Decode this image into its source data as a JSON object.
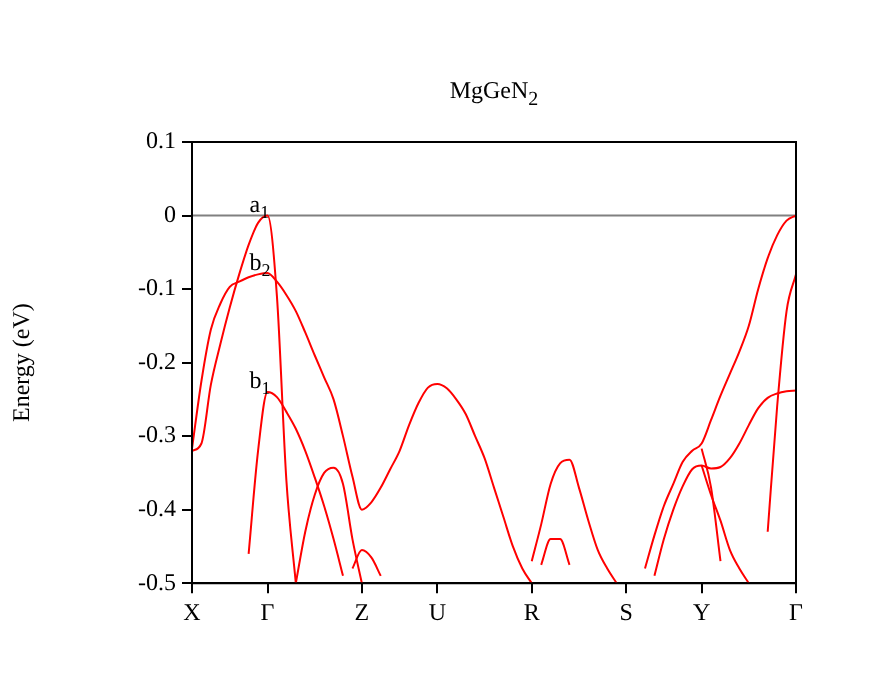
{
  "chart_data": {
    "type": "line",
    "title": "MgGeN$_{2}$",
    "ylabel": "Energy (eV)",
    "categories": [
      "X",
      null,
      null,
      null,
      null,
      null,
      null,
      null,
      "Γ",
      null,
      null,
      null,
      null,
      null,
      null,
      null,
      null,
      null,
      "Z",
      null,
      null,
      null,
      null,
      null,
      null,
      null,
      "U",
      null,
      null,
      null,
      null,
      null,
      null,
      null,
      null,
      null,
      "R",
      null,
      null,
      null,
      null,
      null,
      null,
      null,
      null,
      null,
      "S",
      null,
      null,
      null,
      null,
      null,
      null,
      null,
      "Y",
      null,
      null,
      null,
      null,
      null,
      null,
      null,
      null,
      null,
      "Γ"
    ],
    "ylim": [
      -0.5,
      0.1
    ],
    "yticks": [
      -0.5,
      -0.4,
      -0.3,
      -0.2,
      -0.1,
      0,
      0.1
    ],
    "grid": false,
    "legend": false,
    "marker": "none",
    "line_style": "solid",
    "ref_lines": [
      {
        "axis": "y",
        "value": 0,
        "color": "#808080"
      }
    ],
    "annotations": [
      {
        "text": "a$_{1}$",
        "x": "Γ",
        "y": 0
      },
      {
        "text": "b$_{2}$",
        "x": "Γ",
        "y": -0.08
      },
      {
        "text": "b$_{1}$",
        "x": "Γ",
        "y": -0.24
      }
    ],
    "series": [
      {
        "color": "#ff0000",
        "values": [
          -0.32,
          -0.31,
          -0.23,
          -0.175,
          -0.125,
          -0.08,
          -0.04,
          -0.01,
          0,
          -0.11,
          -0.36,
          -0.5,
          null,
          null,
          null,
          null,
          null,
          null,
          null,
          null,
          null,
          null,
          null,
          null,
          null,
          null,
          null,
          null,
          null,
          null,
          null,
          null,
          null,
          null,
          null,
          null,
          null,
          null,
          null,
          null,
          null,
          null,
          null,
          null,
          null,
          null,
          null,
          null,
          null,
          null,
          null,
          null,
          null,
          null,
          null,
          null,
          null,
          null,
          null,
          null,
          null,
          null,
          null,
          null,
          null
        ]
      },
      {
        "color": "#ff0000",
        "values": [
          -0.317,
          -0.225,
          -0.155,
          -0.12,
          -0.097,
          -0.09,
          -0.084,
          -0.08,
          -0.078,
          -0.09,
          -0.108,
          -0.13,
          -0.159,
          -0.19,
          -0.22,
          -0.25,
          -0.3,
          -0.355,
          -0.4,
          -0.39,
          -0.37,
          -0.345,
          -0.32,
          -0.285,
          -0.255,
          -0.234,
          -0.229,
          -0.235,
          -0.25,
          -0.27,
          -0.3,
          -0.33,
          -0.37,
          -0.41,
          -0.45,
          -0.48,
          -0.5,
          null,
          null,
          null,
          null,
          null,
          null,
          null,
          null,
          null,
          null,
          null,
          null,
          null,
          null,
          null,
          null,
          null,
          null,
          null,
          null,
          null,
          null,
          null,
          null,
          null,
          null,
          null,
          null
        ]
      },
      {
        "color": "#ff0000",
        "values": [
          null,
          null,
          null,
          null,
          null,
          null,
          -0.46,
          -0.32,
          -0.24,
          -0.247,
          -0.267,
          -0.29,
          -0.32,
          -0.356,
          -0.395,
          -0.44,
          -0.49,
          null,
          null,
          null,
          null,
          null,
          null,
          null,
          null,
          null,
          null,
          null,
          null,
          null,
          null,
          null,
          null,
          null,
          null,
          null,
          null,
          null,
          null,
          null,
          null,
          null,
          null,
          null,
          null,
          null,
          null,
          null,
          null,
          null,
          null,
          null,
          null,
          null,
          null,
          null,
          null,
          null,
          null,
          null,
          null,
          null,
          null,
          null,
          null
        ]
      },
      {
        "color": "#ff0000",
        "values": [
          null,
          null,
          null,
          null,
          null,
          null,
          null,
          null,
          null,
          null,
          null,
          -0.5,
          -0.43,
          -0.38,
          -0.35,
          -0.343,
          -0.365,
          -0.44,
          -0.5,
          null,
          null,
          null,
          null,
          null,
          null,
          null,
          null,
          null,
          null,
          null,
          null,
          null,
          null,
          null,
          null,
          null,
          null,
          null,
          null,
          null,
          null,
          null,
          null,
          null,
          null,
          null,
          null,
          null,
          null,
          null,
          null,
          null,
          null,
          null,
          null,
          null,
          null,
          null,
          null,
          null,
          null,
          null,
          null,
          null,
          null
        ]
      },
      {
        "color": "#ff0000",
        "values": [
          null,
          null,
          null,
          null,
          null,
          null,
          null,
          null,
          null,
          null,
          null,
          null,
          null,
          null,
          null,
          null,
          null,
          -0.48,
          -0.455,
          -0.465,
          -0.49,
          null,
          null,
          null,
          null,
          null,
          null,
          null,
          null,
          null,
          null,
          null,
          null,
          null,
          null,
          null,
          null,
          null,
          null,
          null,
          null,
          null,
          null,
          null,
          null,
          null,
          null,
          null,
          null,
          null,
          null,
          null,
          null,
          null,
          null,
          null,
          null,
          null,
          null,
          null,
          null,
          null,
          null,
          null,
          null
        ]
      },
      {
        "color": "#ff0000",
        "values": [
          null,
          null,
          null,
          null,
          null,
          null,
          null,
          null,
          null,
          null,
          null,
          null,
          null,
          null,
          null,
          null,
          null,
          null,
          null,
          null,
          null,
          null,
          null,
          null,
          null,
          null,
          null,
          null,
          null,
          null,
          null,
          null,
          null,
          null,
          null,
          null,
          -0.47,
          -0.42,
          -0.365,
          -0.337,
          -0.332,
          -0.37,
          -0.415,
          -0.455,
          -0.48,
          -0.5,
          null,
          null,
          null,
          null,
          null,
          null,
          null,
          null,
          null,
          null,
          null,
          null,
          null,
          null,
          null,
          null,
          null,
          null,
          null
        ]
      },
      {
        "color": "#ff0000",
        "values": [
          null,
          null,
          null,
          null,
          null,
          null,
          null,
          null,
          null,
          null,
          null,
          null,
          null,
          null,
          null,
          null,
          null,
          null,
          null,
          null,
          null,
          null,
          null,
          null,
          null,
          null,
          null,
          null,
          null,
          null,
          null,
          null,
          null,
          null,
          null,
          null,
          null,
          -0.475,
          -0.44,
          -0.44,
          -0.475,
          null,
          null,
          null,
          null,
          null,
          null,
          null,
          null,
          null,
          null,
          null,
          null,
          null,
          null,
          null,
          null,
          null,
          null,
          null,
          null,
          null,
          null,
          null,
          null
        ]
      },
      {
        "color": "#ff0000",
        "values": [
          null,
          null,
          null,
          null,
          null,
          null,
          null,
          null,
          null,
          null,
          null,
          null,
          null,
          null,
          null,
          null,
          null,
          null,
          null,
          null,
          null,
          null,
          null,
          null,
          null,
          null,
          null,
          null,
          null,
          null,
          null,
          null,
          null,
          null,
          null,
          null,
          null,
          null,
          null,
          null,
          null,
          null,
          null,
          null,
          null,
          null,
          null,
          null,
          -0.48,
          -0.435,
          -0.395,
          -0.365,
          -0.335,
          -0.32,
          -0.31,
          -0.278,
          -0.245,
          -0.215,
          -0.185,
          -0.15,
          -0.1,
          -0.058,
          -0.027,
          -0.007,
          0
        ]
      },
      {
        "color": "#ff0000",
        "values": [
          null,
          null,
          null,
          null,
          null,
          null,
          null,
          null,
          null,
          null,
          null,
          null,
          null,
          null,
          null,
          null,
          null,
          null,
          null,
          null,
          null,
          null,
          null,
          null,
          null,
          null,
          null,
          null,
          null,
          null,
          null,
          null,
          null,
          null,
          null,
          null,
          null,
          null,
          null,
          null,
          null,
          null,
          null,
          null,
          null,
          null,
          null,
          null,
          null,
          -0.49,
          -0.44,
          -0.4,
          -0.368,
          -0.345,
          -0.34,
          -0.344,
          -0.342,
          -0.33,
          -0.31,
          -0.285,
          -0.262,
          -0.248,
          -0.242,
          -0.239,
          -0.238
        ]
      },
      {
        "color": "#ff0000",
        "values": [
          null,
          null,
          null,
          null,
          null,
          null,
          null,
          null,
          null,
          null,
          null,
          null,
          null,
          null,
          null,
          null,
          null,
          null,
          null,
          null,
          null,
          null,
          null,
          null,
          null,
          null,
          null,
          null,
          null,
          null,
          null,
          null,
          null,
          null,
          null,
          null,
          null,
          null,
          null,
          null,
          null,
          null,
          null,
          null,
          null,
          null,
          null,
          null,
          null,
          null,
          null,
          null,
          null,
          null,
          -0.317,
          -0.37,
          -0.47,
          null,
          null,
          null,
          null,
          null,
          null,
          null,
          null
        ]
      },
      {
        "color": "#ff0000",
        "values": [
          null,
          null,
          null,
          null,
          null,
          null,
          null,
          null,
          null,
          null,
          null,
          null,
          null,
          null,
          null,
          null,
          null,
          null,
          null,
          null,
          null,
          null,
          null,
          null,
          null,
          null,
          null,
          null,
          null,
          null,
          null,
          null,
          null,
          null,
          null,
          null,
          null,
          null,
          null,
          null,
          null,
          null,
          null,
          null,
          null,
          null,
          null,
          null,
          null,
          null,
          null,
          null,
          null,
          null,
          -0.34,
          -0.38,
          -0.415,
          -0.455,
          -0.48,
          -0.5,
          null,
          null,
          null,
          null,
          null
        ]
      },
      {
        "color": "#ff0000",
        "values": [
          null,
          null,
          null,
          null,
          null,
          null,
          null,
          null,
          null,
          null,
          null,
          null,
          null,
          null,
          null,
          null,
          null,
          null,
          null,
          null,
          null,
          null,
          null,
          null,
          null,
          null,
          null,
          null,
          null,
          null,
          null,
          null,
          null,
          null,
          null,
          null,
          null,
          null,
          null,
          null,
          null,
          null,
          null,
          null,
          null,
          null,
          null,
          null,
          null,
          null,
          null,
          null,
          null,
          null,
          null,
          null,
          null,
          null,
          null,
          null,
          null,
          -0.43,
          -0.26,
          -0.13,
          -0.08
        ]
      }
    ]
  }
}
